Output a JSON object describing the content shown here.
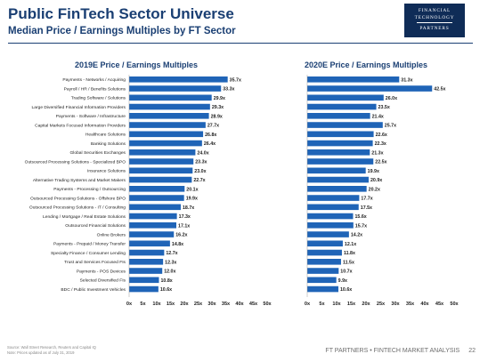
{
  "header": {
    "title": "Public FinTech Sector Universe",
    "subtitle": "Median Price / Earnings Multiples by FT Sector"
  },
  "logo": {
    "line1": "FINANCIAL",
    "line2": "TECHNOLOGY",
    "line3": "PARTNERS",
    "icon": "ft-partners-logo"
  },
  "colors": {
    "bar": "#1f64b7",
    "title": "#1a3f73"
  },
  "chart_data": [
    {
      "type": "bar",
      "orientation": "horizontal",
      "title": "2019E Price / Earnings Multiples",
      "categories": [
        "Payments - Networks / Acquiring",
        "Payroll / HR / Benefits Solutions",
        "Trading Software / Solutions",
        "Large Diversified Financial Information Providers",
        "Payments - Software / Infrastructure",
        "Capital Markets Focused Information Providers",
        "Healthcare Solutions",
        "Banking Solutions",
        "Global Securities Exchanges",
        "Outsourced Processing Solutions - Specialized BPO",
        "Insurance Solutions",
        "Alternative Trading Systems and Market Makers",
        "Payments - Processing / Outsourcing",
        "Outsourced Processing Solutions - Offshore BPO",
        "Outsourced Processing Solutions - IT / Consulting",
        "Lending / Mortgage / Real Estate Solutions",
        "Outsourced Financial Solutions",
        "Online Brokers",
        "Payments - Prepaid / Money Transfer",
        "Specialty Finance / Consumer Lending",
        "Trust and Services Focused FIs",
        "Payments - POS Devices",
        "Selected Diversified FIs",
        "BDC / Public Investment Vehicles"
      ],
      "values": [
        35.7,
        33.3,
        29.9,
        29.3,
        28.9,
        27.7,
        26.8,
        26.4,
        24.0,
        23.3,
        23.0,
        22.7,
        20.1,
        19.9,
        18.7,
        17.3,
        17.1,
        16.2,
        14.8,
        12.7,
        12.3,
        12.0,
        10.8,
        10.6
      ],
      "data_labels": [
        "35.7x",
        "33.3x",
        "29.9x",
        "29.3x",
        "28.9x",
        "27.7x",
        "26.8x",
        "26.4x",
        "24.0x",
        "23.3x",
        "23.0x",
        "22.7x",
        "20.1x",
        "19.9x",
        "18.7x",
        "17.3x",
        "17.1x",
        "16.2x",
        "14.8x",
        "12.7x",
        "12.3x",
        "12.0x",
        "10.8x",
        "10.6x"
      ],
      "xlim": [
        0,
        50
      ],
      "x_ticks": [
        "0x",
        "5x",
        "10x",
        "15x",
        "20x",
        "25x",
        "30x",
        "35x",
        "40x",
        "45x",
        "50x"
      ],
      "grid": false
    },
    {
      "type": "bar",
      "orientation": "horizontal",
      "title": "2020E Price / Earnings Multiples",
      "values": [
        31.3,
        42.5,
        26.0,
        23.5,
        21.4,
        25.7,
        22.6,
        22.3,
        21.3,
        22.5,
        19.9,
        20.9,
        20.2,
        17.7,
        17.5,
        15.6,
        15.7,
        14.2,
        12.1,
        11.8,
        11.5,
        10.7,
        9.9,
        10.6
      ],
      "data_labels": [
        "31.3x",
        "42.5x",
        "26.0x",
        "23.5x",
        "21.4x",
        "25.7x",
        "22.6x",
        "22.3x",
        "21.3x",
        "22.5x",
        "19.9x",
        "20.9x",
        "20.2x",
        "17.7x",
        "17.5x",
        "15.6x",
        "15.7x",
        "14.2x",
        "12.1x",
        "11.8x",
        "11.5x",
        "10.7x",
        "9.9x",
        "10.6x"
      ],
      "xlim": [
        0,
        50
      ],
      "x_ticks": [
        "0x",
        "5x",
        "10x",
        "15x",
        "20x",
        "25x",
        "30x",
        "35x",
        "40x",
        "45x",
        "50x"
      ],
      "grid": false
    }
  ],
  "footer": {
    "source_line1": "Source: Wall Street Research, Reuters and Capital IQ",
    "source_line2": "Note: Prices updated as of July 31, 2019",
    "brand": "FT PARTNERS • FINTECH MARKET ANALYSIS",
    "page": "22"
  }
}
